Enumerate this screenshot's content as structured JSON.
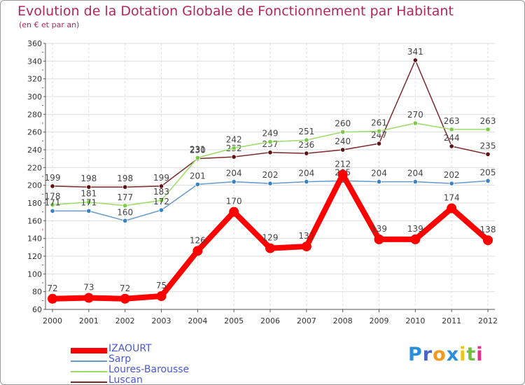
{
  "title": "Evolution de la Dotation Globale de Fonctionnement par Habitant",
  "subtitle": "(en € et par an)",
  "logo": {
    "text": "Proxiti",
    "letters": [
      "P",
      "r",
      "o",
      "x",
      "i",
      "t",
      "i"
    ],
    "colors": [
      "#2a8fd8",
      "#4a63c9",
      "#f39a1e",
      "#2a8fd8",
      "#f0c419",
      "#73c03f",
      "#e6308a"
    ]
  },
  "chart_data": {
    "type": "line",
    "title": "Evolution de la Dotation Globale de Fonctionnement par Habitant",
    "subtitle": "(en € et par an)",
    "xlabel": "",
    "ylabel": "",
    "x": [
      "2000",
      "2001",
      "2002",
      "2003",
      "2004",
      "2005",
      "2006",
      "2007",
      "2008",
      "2009",
      "2010",
      "2011",
      "2012"
    ],
    "ylim": [
      60,
      360
    ],
    "yticks": [
      "60",
      "80",
      "100",
      "120",
      "140",
      "160",
      "180",
      "200",
      "220",
      "240",
      "260",
      "280",
      "300",
      "320",
      "340",
      "360"
    ],
    "grid": true,
    "legend_position": "bottom-left",
    "series": [
      {
        "name": "Luscan",
        "color": "#7a2a2a",
        "marker": "#5a1212",
        "values": [
          199,
          198,
          198,
          199,
          230,
          232,
          237,
          236,
          240,
          247,
          341,
          244,
          235
        ],
        "labels": [
          "199",
          "198",
          "198",
          "199",
          "230",
          "232",
          "237",
          "236",
          "240",
          "247",
          "341",
          "244",
          "235"
        ]
      },
      {
        "name": "Loures-Barousse",
        "color": "#99dd66",
        "marker": "#77cc44",
        "values": [
          178,
          181,
          177,
          183,
          231,
          242,
          249,
          251,
          260,
          261,
          270,
          263,
          263
        ],
        "labels": [
          "178",
          "181",
          "177",
          "183",
          "231",
          "242",
          "249",
          "251",
          "260",
          "261",
          "270",
          "263",
          "263"
        ]
      },
      {
        "name": "Sarp",
        "color": "#6699cc",
        "marker": "#3b82c4",
        "values": [
          171,
          171,
          160,
          172,
          201,
          204,
          202,
          204,
          205,
          204,
          204,
          202,
          205
        ],
        "labels": [
          "171",
          "171",
          "160",
          "172",
          "201",
          "204",
          "202",
          "204",
          "205",
          "204",
          "204",
          "202",
          "205"
        ]
      },
      {
        "name": "IZAOURT",
        "color": "#ff0000",
        "marker": "#ff0000",
        "values": [
          72,
          73,
          72,
          75,
          126,
          170,
          129,
          131,
          212,
          139,
          139,
          174,
          138
        ],
        "labels": [
          "72",
          "73",
          "72",
          "75",
          "126",
          "170",
          "129",
          "131",
          "212",
          "139",
          "139",
          "174",
          "138"
        ]
      }
    ]
  }
}
